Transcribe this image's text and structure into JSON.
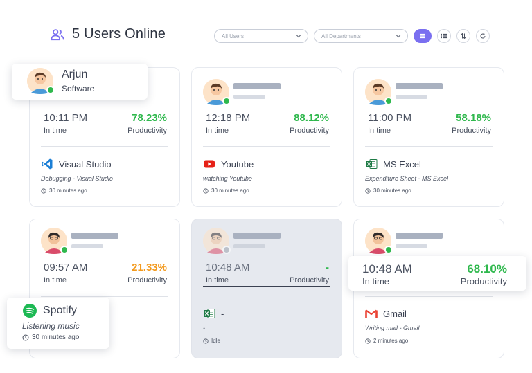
{
  "header": {
    "title": "5 Users Online",
    "icon": "users-icon"
  },
  "toolbar": {
    "users_filter": "All Users",
    "departments_filter": "All Departments",
    "view_buttons": [
      "card-view-icon",
      "list-view-icon",
      "sort-icon",
      "refresh-icon"
    ]
  },
  "colors": {
    "accent": "#7a6ff0",
    "online": "#2fb84d",
    "warning": "#f39a1e",
    "idle_bg": "#e6e9ef"
  },
  "cards": [
    {
      "name": "Arjun",
      "department": "Software",
      "time": "10:11 PM",
      "time_label": "In time",
      "productivity": "78.23%",
      "productivity_label": "Productivity",
      "app": "Visual Studio",
      "activity": "Debugging - Visual Studio",
      "ago": "30 minutes ago"
    },
    {
      "time": "12:18 PM",
      "time_label": "In time",
      "productivity": "88.12%",
      "productivity_label": "Productivity",
      "app": "Youtube",
      "activity": "watching Youtube",
      "ago": "30 minutes ago"
    },
    {
      "time": "11:00 PM",
      "time_label": "In time",
      "productivity": "58.18%",
      "productivity_label": "Productivity",
      "app": "MS Excel",
      "activity": "Expenditure Sheet - MS Excel",
      "ago": "30 minutes ago"
    },
    {
      "time": "09:57 AM",
      "time_label": "In time",
      "productivity": "21.33%",
      "productivity_label": "Productivity",
      "app": "Spotify",
      "activity": "Listening music",
      "ago": "30 minutes ago"
    },
    {
      "time": "10:48 AM",
      "time_label": "In time",
      "productivity": "-",
      "productivity_label": "Productivity",
      "app": "-",
      "activity": "-",
      "ago": "Idle"
    },
    {
      "time": "10:48 AM",
      "time_label": "In time",
      "productivity": "68.10%",
      "productivity_label": "Productivity",
      "app": "Gmail",
      "activity": "Writing mail - Gmail",
      "ago": "2 minutes ago"
    }
  ]
}
